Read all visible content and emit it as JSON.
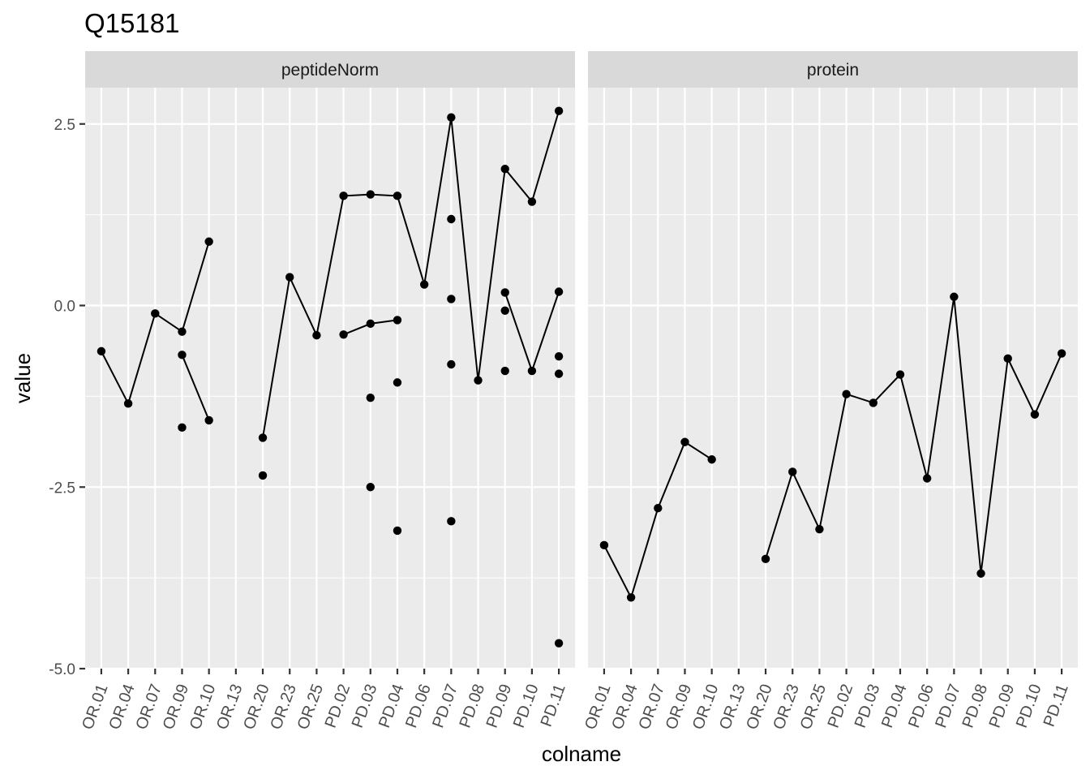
{
  "chart_data": {
    "type": "line",
    "title": "Q15181",
    "xlabel": "colname",
    "ylabel": "value",
    "ylim": [
      -5.0,
      3.0
    ],
    "yticks": [
      2.5,
      0.0,
      -2.5,
      -5.0
    ],
    "ytick_labels": [
      "2.5",
      "0.0",
      "-2.5",
      "-5.0"
    ],
    "grid": true,
    "categories": [
      "OR.01",
      "OR.04",
      "OR.07",
      "OR.09",
      "OR.10",
      "OR.13",
      "OR.20",
      "OR.23",
      "OR.25",
      "PD.02",
      "PD.03",
      "PD.04",
      "PD.06",
      "PD.07",
      "PD.08",
      "PD.09",
      "PD.10",
      "PD.11"
    ],
    "panels": [
      {
        "strip": "peptideNorm",
        "lines": [
          [
            -0.63,
            -1.35,
            -0.11,
            -0.36,
            0.88,
            null,
            -1.82,
            0.39,
            -0.41,
            1.51,
            1.53,
            1.51,
            0.29,
            2.59,
            -1.03,
            1.88,
            1.43,
            2.68
          ],
          [
            null,
            null,
            null,
            -0.68,
            -1.58,
            null,
            null,
            null,
            null,
            -0.4,
            -0.25,
            -0.2,
            null,
            null,
            null,
            0.18,
            -0.9,
            0.19
          ]
        ],
        "points": [
          [
            -0.63
          ],
          [
            -1.35
          ],
          [
            -0.11
          ],
          [
            -0.36,
            -0.68,
            -1.68
          ],
          [
            0.88,
            -1.58
          ],
          [],
          [
            -1.82,
            -2.34
          ],
          [
            0.39
          ],
          [
            -0.41
          ],
          [
            1.51,
            -0.4
          ],
          [
            1.53,
            -0.25,
            -1.27,
            -2.5
          ],
          [
            1.51,
            -0.2,
            -1.06,
            -3.1
          ],
          [
            0.29
          ],
          [
            2.59,
            1.19,
            0.09,
            -0.81,
            -2.97
          ],
          [
            -1.03
          ],
          [
            1.88,
            0.18,
            -0.07,
            -0.9
          ],
          [
            1.43,
            -0.9
          ],
          [
            2.68,
            0.19,
            -0.7,
            -0.94,
            -4.65
          ]
        ]
      },
      {
        "strip": "protein",
        "lines": [
          [
            -3.3,
            -4.02,
            -2.79,
            -1.88,
            -2.12,
            null,
            -3.49,
            -2.29,
            -3.08,
            -1.22,
            -1.34,
            -0.95,
            -2.38,
            0.12,
            -3.69,
            -0.73,
            -1.5,
            -0.66
          ]
        ],
        "points": [
          [
            -3.3
          ],
          [
            -4.02
          ],
          [
            -2.79
          ],
          [
            -1.88
          ],
          [
            -2.12
          ],
          [],
          [
            -3.49
          ],
          [
            -2.29
          ],
          [
            -3.08
          ],
          [
            -1.22
          ],
          [
            -1.34
          ],
          [
            -0.95
          ],
          [
            -2.38
          ],
          [
            0.12
          ],
          [
            -3.69
          ],
          [
            -0.73
          ],
          [
            -1.5
          ],
          [
            -0.66
          ]
        ]
      }
    ]
  }
}
